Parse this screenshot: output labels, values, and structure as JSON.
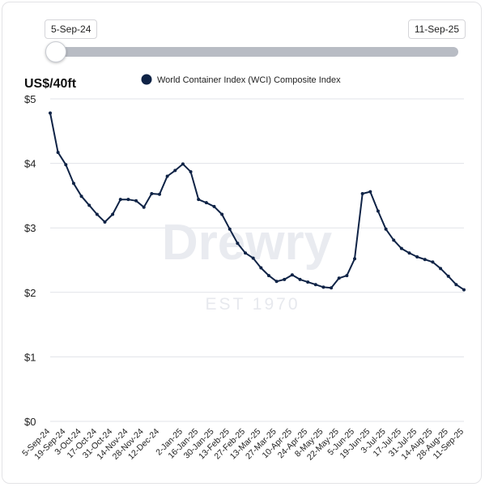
{
  "range_slider": {
    "start_label": "5-Sep-24",
    "end_label": "11-Sep-25",
    "start_fraction": 0.0
  },
  "chart_data": {
    "type": "line",
    "ylabel": "US$/40ft",
    "ylim": [
      0,
      5
    ],
    "yticks": [
      0,
      1,
      2,
      3,
      4,
      5
    ],
    "ytick_labels": [
      "$0",
      "$1",
      "$2",
      "$3",
      "$4",
      "$5"
    ],
    "grid": true,
    "legend_position": "top",
    "color": "#0f2346",
    "watermark": {
      "text": "Drewry",
      "subtext": "EST 1970"
    },
    "x_tick_labels": [
      "5-Sep-24",
      "19-Sep-24",
      "3-Oct-24",
      "17-Oct-24",
      "31-Oct-24",
      "14-Nov-24",
      "28-Nov-24",
      "12-Dec-24",
      "2-Jan-25",
      "16-Jan-25",
      "30-Jan-25",
      "13-Feb-25",
      "27-Feb-25",
      "13-Mar-25",
      "27-Mar-25",
      "10-Apr-25",
      "24-Apr-25",
      "8-May-25",
      "22-May-25",
      "5-Jun-25",
      "19-Jun-25",
      "3-Jul-25",
      "17-Jul-25",
      "31-Jul-25",
      "14-Aug-25",
      "28-Aug-25",
      "11-Sep-25"
    ],
    "series": [
      {
        "name": "World Container Index (WCI) Composite Index",
        "x": [
          "5-Sep-24",
          "12-Sep-24",
          "19-Sep-24",
          "26-Sep-24",
          "3-Oct-24",
          "10-Oct-24",
          "17-Oct-24",
          "24-Oct-24",
          "31-Oct-24",
          "7-Nov-24",
          "14-Nov-24",
          "21-Nov-24",
          "28-Nov-24",
          "5-Dec-24",
          "12-Dec-24",
          "19-Dec-24",
          "26-Dec-24",
          "2-Jan-25",
          "9-Jan-25",
          "16-Jan-25",
          "23-Jan-25",
          "30-Jan-25",
          "6-Feb-25",
          "13-Feb-25",
          "20-Feb-25",
          "27-Feb-25",
          "6-Mar-25",
          "13-Mar-25",
          "20-Mar-25",
          "27-Mar-25",
          "3-Apr-25",
          "10-Apr-25",
          "17-Apr-25",
          "24-Apr-25",
          "1-May-25",
          "8-May-25",
          "15-May-25",
          "22-May-25",
          "29-May-25",
          "5-Jun-25",
          "12-Jun-25",
          "19-Jun-25",
          "26-Jun-25",
          "3-Jul-25",
          "10-Jul-25",
          "17-Jul-25",
          "24-Jul-25",
          "31-Jul-25",
          "7-Aug-25",
          "14-Aug-25",
          "21-Aug-25",
          "28-Aug-25",
          "4-Sep-25",
          "11-Sep-25"
        ],
        "values": [
          4.78,
          4.17,
          3.98,
          3.69,
          3.49,
          3.35,
          3.21,
          3.09,
          3.21,
          3.44,
          3.44,
          3.42,
          3.32,
          3.53,
          3.52,
          3.8,
          3.89,
          3.99,
          3.87,
          3.44,
          3.39,
          3.33,
          3.21,
          2.98,
          2.76,
          2.61,
          2.53,
          2.38,
          2.26,
          2.17,
          2.2,
          2.27,
          2.2,
          2.16,
          2.12,
          2.08,
          2.07,
          2.22,
          2.26,
          2.52,
          3.53,
          3.56,
          3.26,
          2.98,
          2.81,
          2.68,
          2.61,
          2.55,
          2.51,
          2.47,
          2.37,
          2.25,
          2.12,
          2.04
        ]
      }
    ]
  }
}
